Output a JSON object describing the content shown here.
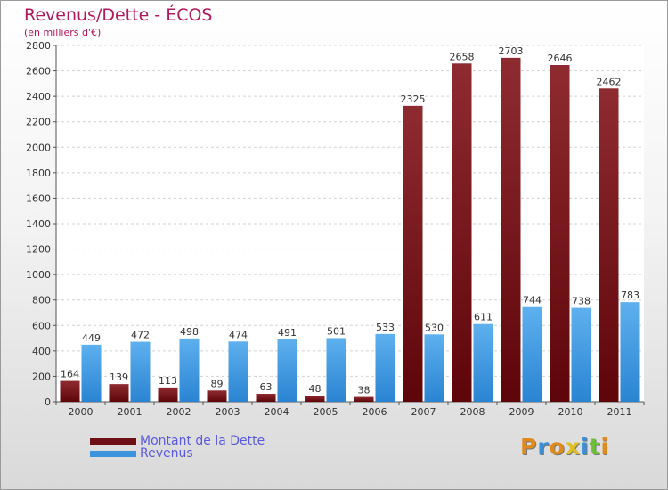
{
  "title": "Revenus/Dette - ÉCOS",
  "subtitle": "(en milliers d'€)",
  "colors": {
    "dette": "#6e0f16",
    "revenus": "#3b94de",
    "title": "#b0195e",
    "legend_text": "#5a5ae0"
  },
  "legend": {
    "dette": "Montant de la Dette",
    "revenus": "Revenus"
  },
  "logo": {
    "text": "Proxiti",
    "letters": [
      "P",
      "r",
      "o",
      "x",
      "i",
      "t",
      "i"
    ],
    "colors": [
      "#e08a1e",
      "#3b8fd6",
      "#e08a1e",
      "#e0c020",
      "#3b8fd6",
      "#6cbf3a",
      "#e08a1e"
    ]
  },
  "chart_data": {
    "type": "bar",
    "title": "Revenus/Dette - ÉCOS",
    "ylabel": "(en milliers d'€)",
    "xlabel": "",
    "ylim": [
      0,
      2800
    ],
    "yticks": [
      0,
      200,
      400,
      600,
      800,
      1000,
      1200,
      1400,
      1600,
      1800,
      2000,
      2200,
      2400,
      2600,
      2800
    ],
    "grid": true,
    "categories": [
      "2000",
      "2001",
      "2002",
      "2003",
      "2004",
      "2005",
      "2006",
      "2007",
      "2008",
      "2009",
      "2010",
      "2011"
    ],
    "series": [
      {
        "name": "Montant de la Dette",
        "values": [
          164,
          139,
          113,
          89,
          63,
          48,
          38,
          2325,
          2658,
          2703,
          2646,
          2462
        ]
      },
      {
        "name": "Revenus",
        "values": [
          449,
          472,
          498,
          474,
          491,
          501,
          533,
          530,
          611,
          744,
          738,
          783
        ]
      }
    ]
  }
}
